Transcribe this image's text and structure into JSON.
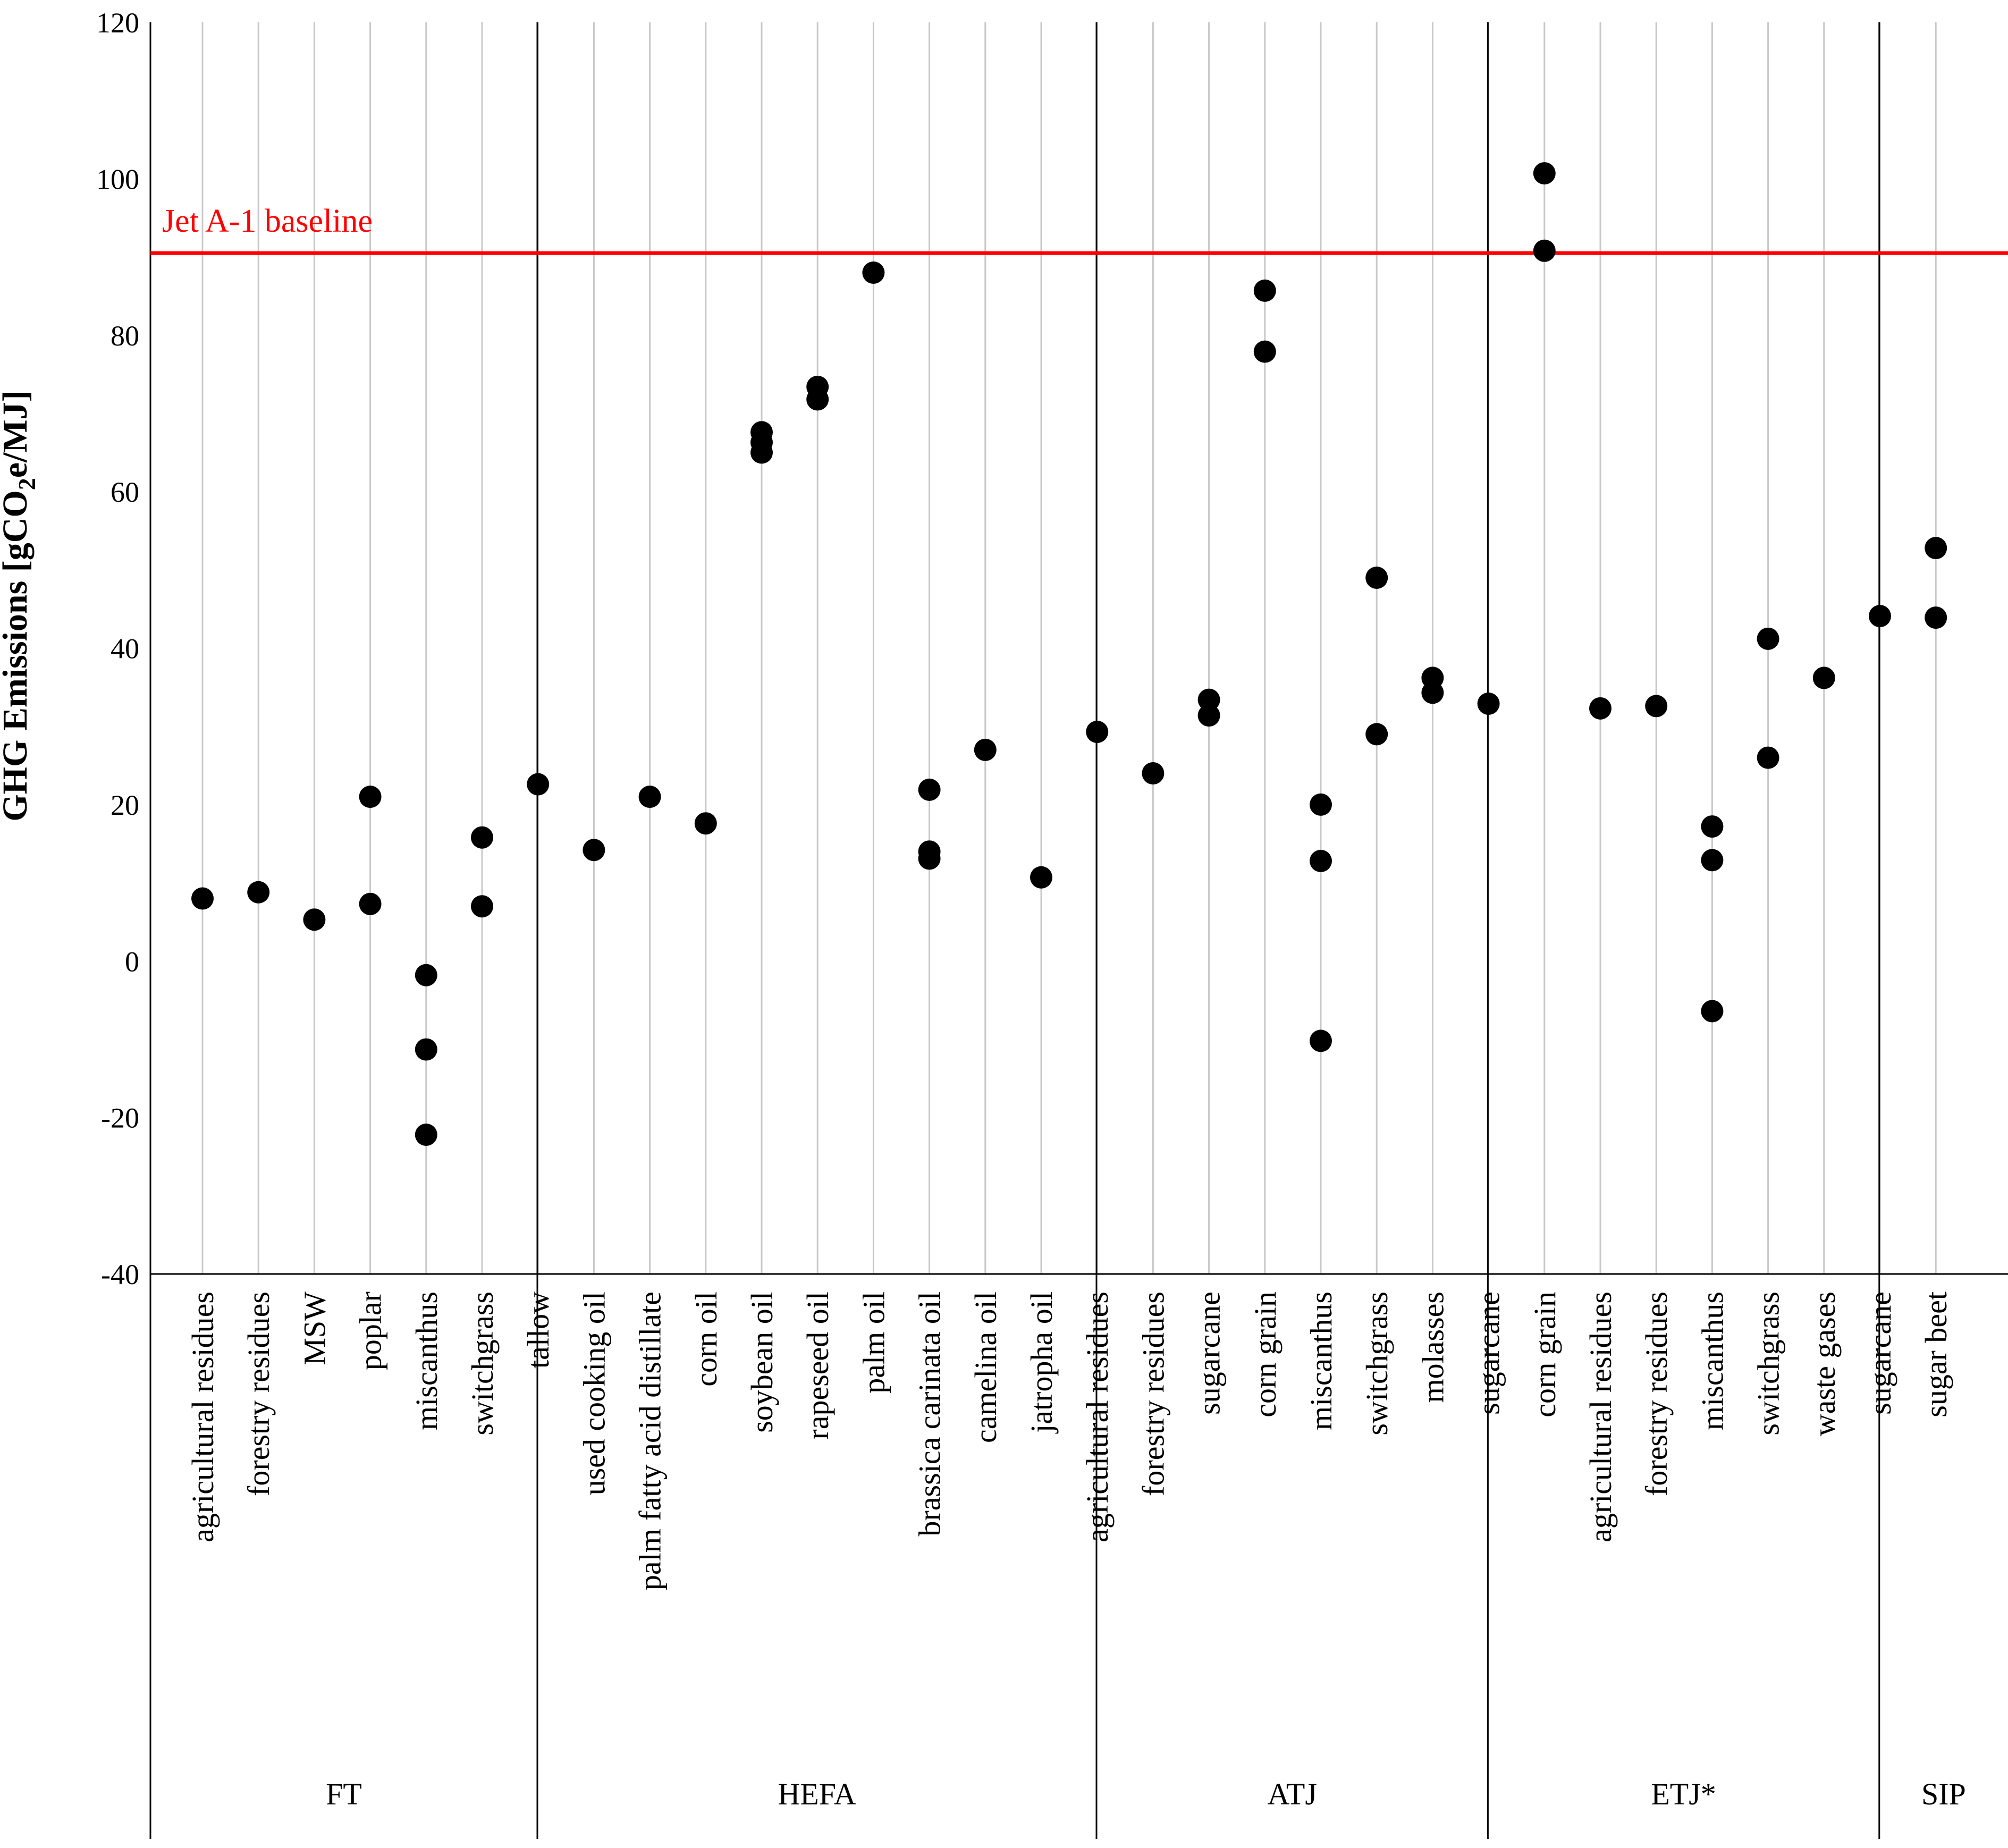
{
  "chart_data": {
    "type": "scatter",
    "ylabel_prefix": "GHG Emissions [gCO",
    "ylabel_sub": "2",
    "ylabel_suffix": "e/MJ]",
    "ylim": [
      -40,
      120
    ],
    "yticks": [
      120,
      100,
      80,
      60,
      40,
      20,
      0,
      -20,
      -40
    ],
    "grid": "vertical lines at each category",
    "baseline": {
      "label": "Jet A-1 baseline",
      "value": 90.5,
      "color": "#ff0000"
    },
    "groups": [
      {
        "name": "FT",
        "categories": [
          {
            "label": "agricultural residues",
            "values": [
              8
            ]
          },
          {
            "label": "forestry residues",
            "values": [
              8.8
            ]
          },
          {
            "label": "MSW",
            "values": [
              5.3
            ]
          },
          {
            "label": "poplar",
            "values": [
              21,
              7.3
            ]
          },
          {
            "label": "miscanthus",
            "values": [
              -1.8,
              -11.3,
              -22.2
            ]
          },
          {
            "label": "switchgrass",
            "values": [
              15.8,
              7
            ]
          }
        ]
      },
      {
        "name": "HEFA",
        "categories": [
          {
            "label": "tallow",
            "values": [
              22.6
            ]
          },
          {
            "label": "used cooking oil",
            "values": [
              14.2
            ]
          },
          {
            "label": "palm fatty acid distillate",
            "values": [
              21
            ]
          },
          {
            "label": "corn oil",
            "values": [
              17.6
            ]
          },
          {
            "label": "soybean oil",
            "values": [
              67.6,
              66.3,
              65
            ]
          },
          {
            "label": "rapeseed oil",
            "values": [
              73.4,
              71.8
            ]
          },
          {
            "label": "palm oil",
            "values": [
              88
            ]
          },
          {
            "label": "brassica carinata oil",
            "values": [
              21.9,
              14,
              13.1
            ]
          },
          {
            "label": "camelina oil",
            "values": [
              27
            ]
          },
          {
            "label": "jatropha oil",
            "values": [
              10.7
            ]
          }
        ]
      },
      {
        "name": "ATJ",
        "categories": [
          {
            "label": "agricultural residues",
            "values": [
              29.3
            ]
          },
          {
            "label": "forestry residues",
            "values": [
              24
            ]
          },
          {
            "label": "sugarcane",
            "values": [
              33.4,
              31.4
            ]
          },
          {
            "label": "corn grain",
            "values": [
              85.7,
              77.9
            ]
          },
          {
            "label": "miscanthus",
            "values": [
              20,
              12.8,
              -10.2
            ]
          },
          {
            "label": "switchgrass",
            "values": [
              49,
              29
            ]
          },
          {
            "label": "molasses",
            "values": [
              36.2,
              34.3
            ]
          }
        ]
      },
      {
        "name": "ETJ*",
        "categories": [
          {
            "label": "sugarcane",
            "values": [
              32.9
            ]
          },
          {
            "label": "corn grain",
            "values": [
              100.7,
              90.8
            ]
          },
          {
            "label": "agricultural residues",
            "values": [
              32.3
            ]
          },
          {
            "label": "forestry residues",
            "values": [
              32.6
            ]
          },
          {
            "label": "miscanthus",
            "values": [
              17.2,
              12.9,
              -6.4
            ]
          },
          {
            "label": "switchgrass",
            "values": [
              41.2,
              26
            ]
          },
          {
            "label": "waste gases",
            "values": [
              36.2
            ]
          }
        ]
      },
      {
        "name": "SIP",
        "categories": [
          {
            "label": "sugarcane",
            "values": [
              44.1
            ]
          },
          {
            "label": "sugar beet",
            "values": [
              52.8,
              43.9
            ]
          }
        ]
      }
    ]
  }
}
